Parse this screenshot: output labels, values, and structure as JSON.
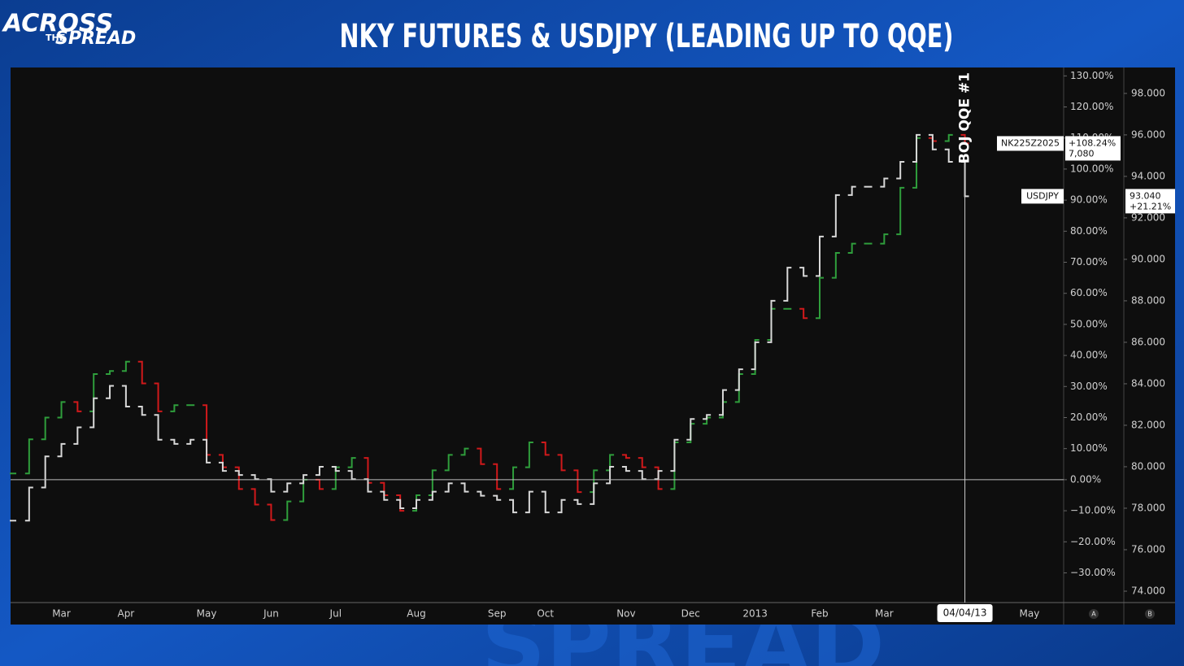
{
  "header": {
    "logo": [
      "ACROSS",
      "THE",
      "SPREAD"
    ]
  },
  "watermark": "SPREAD",
  "chart_data": {
    "type": "line",
    "title": "NKY FUTURES & USDJPY (LEADING UP TO QQE)",
    "annotation": "BOJ QQE #1",
    "cursor_label": "04/04/13",
    "axis_buttons": [
      "A",
      "B"
    ],
    "categories": [
      null,
      null,
      null,
      "Mar",
      null,
      null,
      null,
      "Apr",
      null,
      null,
      null,
      null,
      "May",
      null,
      null,
      null,
      "Jun",
      null,
      null,
      null,
      "Jul",
      null,
      null,
      null,
      null,
      "Aug",
      null,
      null,
      null,
      null,
      "Sep",
      null,
      null,
      "Oct",
      null,
      null,
      null,
      null,
      "Nov",
      null,
      null,
      null,
      "Dec",
      null,
      null,
      null,
      "2013",
      null,
      null,
      null,
      "Feb",
      null,
      null,
      null,
      "Mar",
      null,
      null,
      null,
      null,
      null,
      null,
      null,
      null,
      "May"
    ],
    "series": [
      {
        "name": "NK225Z2025",
        "axis": "y",
        "up_color": "#2f9e3c",
        "down_color": "#d1191b",
        "last_label": "+108.24%",
        "price_label": "7,080",
        "values": [
          2,
          13,
          20,
          25,
          22,
          34,
          35,
          38,
          31,
          22,
          24,
          24,
          8,
          4,
          -3,
          -8,
          -13,
          -7,
          0,
          -3,
          4,
          7,
          -1,
          -5,
          -10,
          -5,
          3,
          8,
          10,
          5,
          -3,
          4,
          12,
          8,
          3,
          -4,
          3,
          8,
          7,
          4,
          -3,
          12,
          18,
          20,
          25,
          34,
          45,
          55,
          55,
          52,
          65,
          73,
          76,
          76,
          79,
          94,
          110,
          109,
          111,
          108.24,
          null,
          null,
          null,
          null
        ]
      },
      {
        "name": "USDJPY",
        "axis": "y2",
        "color": "#d8d8d8",
        "last_label": "93.040",
        "change_label": "+21.21%",
        "values": [
          77.4,
          79.0,
          80.5,
          81.1,
          81.9,
          83.3,
          83.9,
          82.9,
          82.5,
          81.3,
          81.1,
          81.3,
          80.2,
          79.8,
          79.6,
          79.4,
          78.8,
          79.2,
          79.6,
          80.0,
          79.8,
          79.4,
          78.8,
          78.4,
          78.0,
          78.4,
          78.8,
          79.2,
          78.8,
          78.6,
          78.4,
          77.8,
          78.8,
          77.8,
          78.4,
          78.2,
          79.2,
          80.0,
          79.8,
          79.4,
          79.8,
          81.3,
          82.3,
          82.5,
          83.7,
          84.7,
          86.0,
          88.0,
          89.6,
          89.2,
          91.1,
          93.1,
          93.5,
          93.5,
          93.9,
          94.7,
          96.0,
          95.3,
          94.7,
          93.04,
          null,
          null,
          null,
          null
        ]
      }
    ],
    "ylim": [
      -39.3,
      132.7
    ],
    "yticks": [
      {
        "value": 130,
        "label": "130.00%"
      },
      {
        "value": 120,
        "label": "120.00%"
      },
      {
        "value": 110,
        "label": "110.00%"
      },
      {
        "value": 100,
        "label": "100.00%"
      },
      {
        "value": 90,
        "label": "90.00%"
      },
      {
        "value": 80,
        "label": "80.00%"
      },
      {
        "value": 70,
        "label": "70.00%"
      },
      {
        "value": 60,
        "label": "60.00%"
      },
      {
        "value": 50,
        "label": "50.00%"
      },
      {
        "value": 40,
        "label": "40.00%"
      },
      {
        "value": 30,
        "label": "30.00%"
      },
      {
        "value": 20,
        "label": "20.00%"
      },
      {
        "value": 10,
        "label": "10.00%"
      },
      {
        "value": 0,
        "label": "0.00%"
      },
      {
        "value": -10,
        "label": "−10.00%"
      },
      {
        "value": -20,
        "label": "−20.00%"
      },
      {
        "value": -30,
        "label": "−30.00%"
      }
    ],
    "y2lim": [
      73.49,
      99.25
    ],
    "y2ticks": [
      {
        "value": 98,
        "label": "98.000"
      },
      {
        "value": 96,
        "label": "96.000"
      },
      {
        "value": 94,
        "label": "94.000"
      },
      {
        "value": 92,
        "label": "92.000"
      },
      {
        "value": 90,
        "label": "90.000"
      },
      {
        "value": 88,
        "label": "88.000"
      },
      {
        "value": 86,
        "label": "86.000"
      },
      {
        "value": 84,
        "label": "84.000"
      },
      {
        "value": 82,
        "label": "82.000"
      },
      {
        "value": 80,
        "label": "80.000"
      },
      {
        "value": 78,
        "label": "78.000"
      },
      {
        "value": 76,
        "label": "76.000"
      },
      {
        "value": 74,
        "label": "74.000"
      }
    ],
    "zero_line": true
  }
}
